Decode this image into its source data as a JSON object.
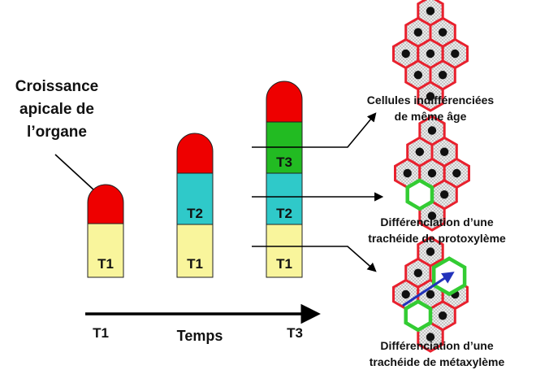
{
  "colors": {
    "apex": "#ee0000",
    "t1": "#f9f59c",
    "t2": "#2fc9c9",
    "t3": "#22bb22",
    "cell_outline": "#e8212e",
    "cell_fill": "#e4e4e4",
    "nucleus": "#111111",
    "tracheid_outline": "#33cc33",
    "arrow_blue": "#2233bb"
  },
  "left_label": {
    "line1": "Croissance",
    "line2": "apicale de",
    "line3": "l’organe"
  },
  "columns": [
    {
      "segments": [
        "T1"
      ]
    },
    {
      "segments": [
        "T1",
        "T2"
      ]
    },
    {
      "segments": [
        "T1",
        "T2",
        "T3"
      ]
    }
  ],
  "time_axis": {
    "start": "T1",
    "end": "T3",
    "title": "Temps"
  },
  "clusters": [
    {
      "caption1": "Cellules indifférenciées",
      "caption2": "de même âge"
    },
    {
      "caption1": "Différenciation d’une",
      "caption2": "trachéide de protoxylème"
    },
    {
      "caption1": "Différenciation d’une",
      "caption2": "trachéide de métaxylème"
    }
  ]
}
